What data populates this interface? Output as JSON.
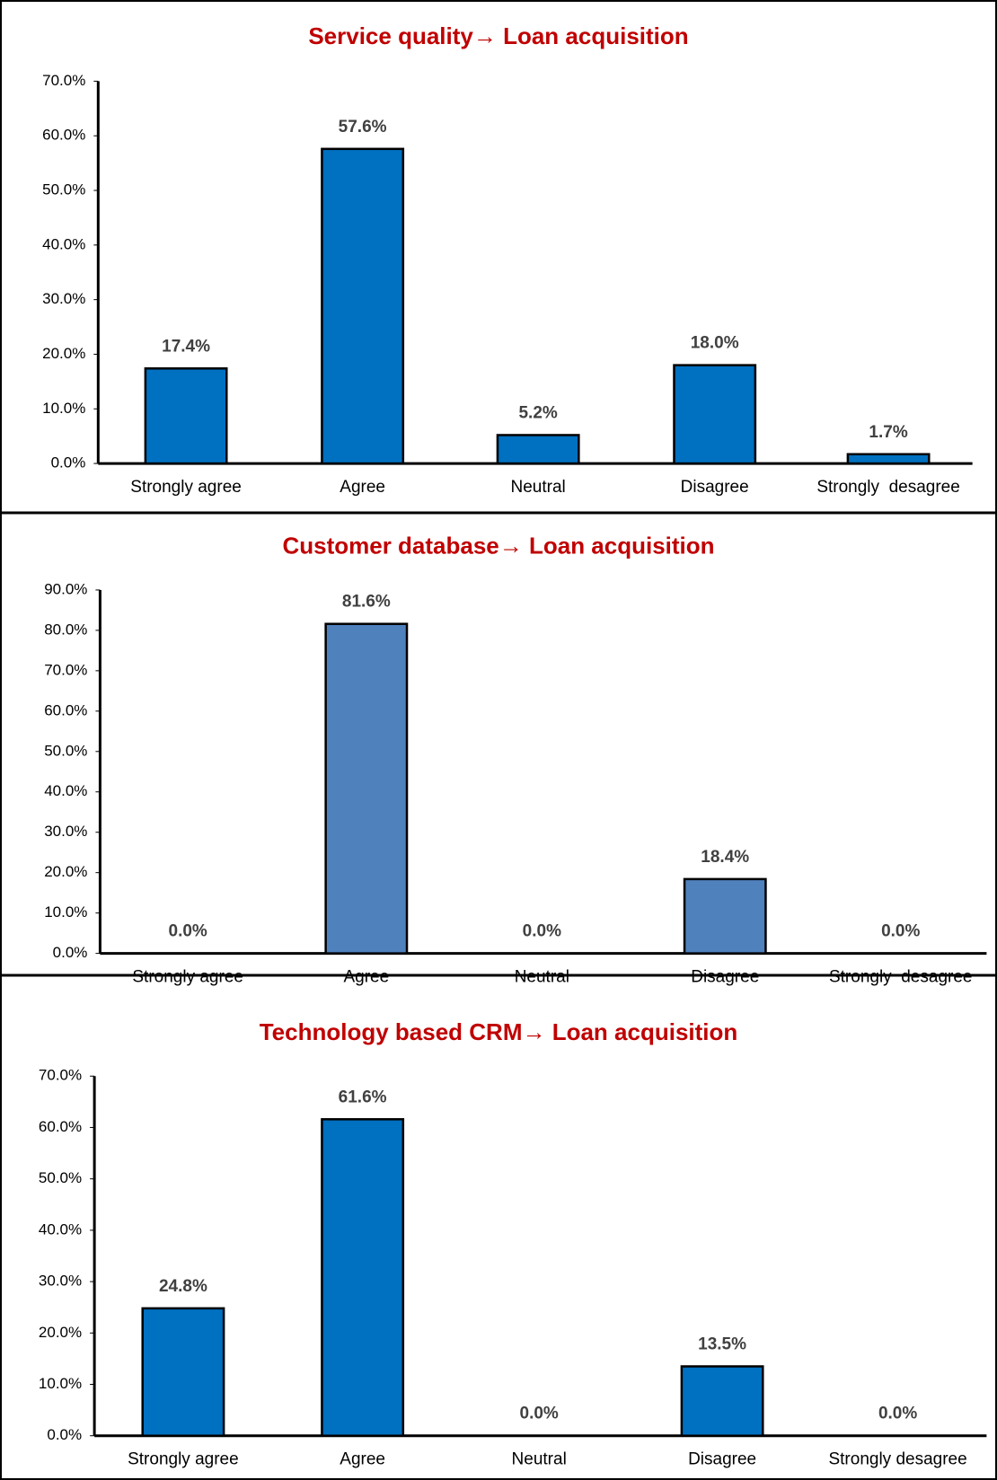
{
  "chart_data": [
    {
      "type": "bar",
      "title": "Service quality→ Loan acquisition",
      "categories": [
        "Strongly agree",
        "Agree",
        "Neutral",
        "Disagree",
        "Strongly  desagree"
      ],
      "values": [
        17.4,
        57.6,
        5.2,
        18.0,
        1.7
      ],
      "value_labels": [
        "17.4%",
        "57.6%",
        "5.2%",
        "18.0%",
        "1.7%"
      ],
      "color": "#0070c0",
      "ylim": [
        0,
        70
      ],
      "yticks": [
        {
          "value": 0,
          "label": "0.0%"
        },
        {
          "value": 10,
          "label": "10.0%"
        },
        {
          "value": 20,
          "label": "20.0%"
        },
        {
          "value": 30,
          "label": "30.0%"
        },
        {
          "value": 40,
          "label": "40.0%"
        },
        {
          "value": 50,
          "label": "50.0%"
        },
        {
          "value": 60,
          "label": "60.0%"
        },
        {
          "value": 70,
          "label": "70.0%"
        }
      ],
      "grid": false
    },
    {
      "type": "bar",
      "title": "Customer database→ Loan acquisition",
      "categories": [
        "Strongly agree",
        "Agree",
        "Neutral",
        "Disagree",
        "Strongly  desagree"
      ],
      "values": [
        0.0,
        81.6,
        0.0,
        18.4,
        0.0
      ],
      "value_labels": [
        "0.0%",
        "81.6%",
        "0.0%",
        "18.4%",
        "0.0%"
      ],
      "color": "#4f81bd",
      "ylim": [
        0,
        90
      ],
      "yticks": [
        {
          "value": 0,
          "label": "0.0%"
        },
        {
          "value": 10,
          "label": "10.0%"
        },
        {
          "value": 20,
          "label": "20.0%"
        },
        {
          "value": 30,
          "label": "30.0%"
        },
        {
          "value": 40,
          "label": "40.0%"
        },
        {
          "value": 50,
          "label": "50.0%"
        },
        {
          "value": 60,
          "label": "60.0%"
        },
        {
          "value": 70,
          "label": "70.0%"
        },
        {
          "value": 80,
          "label": "80.0%"
        },
        {
          "value": 90,
          "label": "90.0%"
        }
      ],
      "grid": false
    },
    {
      "type": "bar",
      "title": "Technology based CRM→ Loan acquisition",
      "categories": [
        "Strongly agree",
        "Agree",
        "Neutral",
        "Disagree",
        "Strongly desagree"
      ],
      "values": [
        24.8,
        61.6,
        0.0,
        13.5,
        0.0
      ],
      "value_labels": [
        "24.8%",
        "61.6%",
        "0.0%",
        "13.5%",
        "0.0%"
      ],
      "color": "#0070c0",
      "ylim": [
        0,
        70
      ],
      "yticks": [
        {
          "value": 0,
          "label": "0.0%"
        },
        {
          "value": 10,
          "label": "10.0%"
        },
        {
          "value": 20,
          "label": "20.0%"
        },
        {
          "value": 30,
          "label": "30.0%"
        },
        {
          "value": 40,
          "label": "40.0%"
        },
        {
          "value": 50,
          "label": "50.0%"
        },
        {
          "value": 60,
          "label": "60.0%"
        },
        {
          "value": 70,
          "label": "70.0%"
        }
      ],
      "grid": false
    }
  ]
}
